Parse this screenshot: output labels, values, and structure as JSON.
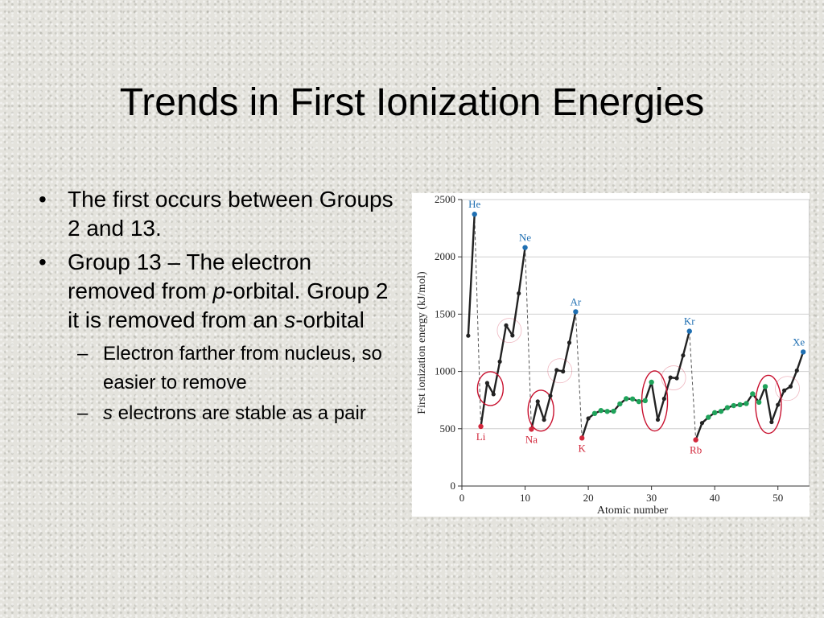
{
  "slide": {
    "title": "Trends in First Ionization Energies",
    "bullets": [
      {
        "parts": [
          {
            "text": "The first occurs between Groups 2 and 13.",
            "italic": false
          }
        ]
      },
      {
        "parts": [
          {
            "text": "Group 13 – The electron removed from ",
            "italic": false
          },
          {
            "text": "p",
            "italic": true
          },
          {
            "text": "-orbital. Group 2 it is removed from an ",
            "italic": false
          },
          {
            "text": "s",
            "italic": true
          },
          {
            "text": "-orbital",
            "italic": false
          }
        ],
        "sub": [
          {
            "parts": [
              {
                "text": "Electron farther from nucleus, so easier to remove",
                "italic": false
              }
            ]
          },
          {
            "parts": [
              {
                "text": "s",
                "italic": true
              },
              {
                "text": " electrons are stable as a pair",
                "italic": false
              }
            ]
          }
        ]
      }
    ]
  },
  "chart_data": {
    "type": "line",
    "xlabel": "Atomic number",
    "ylabel": "First ionization energy (kJ/mol)",
    "xlim": [
      0,
      55
    ],
    "ylim": [
      0,
      2500
    ],
    "xticks": [
      0,
      10,
      20,
      30,
      40,
      50
    ],
    "yticks": [
      0,
      500,
      1000,
      1500,
      2000,
      2500
    ],
    "grid": "horizontal",
    "colors": {
      "line": "#222222",
      "normal_point": "#222222",
      "noble_gas": "#1f6fb2",
      "alkali_metal": "#d2283c",
      "transition_metal": "#1fa35a",
      "circle": "#c8102e"
    },
    "series": [
      {
        "x": [
          1,
          2,
          3,
          4,
          5,
          6,
          7,
          8,
          9,
          10,
          11,
          12,
          13,
          14,
          15,
          16,
          17,
          18,
          19,
          20,
          21,
          22,
          23,
          24,
          25,
          26,
          27,
          28,
          29,
          30,
          31,
          32,
          33,
          34,
          35,
          36,
          37,
          38,
          39,
          40,
          41,
          42,
          43,
          44,
          45,
          46,
          47,
          48,
          49,
          50,
          51,
          52,
          53,
          54
        ],
        "values": [
          1312,
          2372,
          520,
          899,
          801,
          1086,
          1402,
          1314,
          1681,
          2081,
          496,
          738,
          578,
          787,
          1012,
          1000,
          1251,
          1521,
          419,
          590,
          633,
          659,
          651,
          653,
          717,
          762,
          760,
          737,
          745,
          906,
          579,
          762,
          947,
          941,
          1140,
          1351,
          403,
          550,
          600,
          640,
          652,
          684,
          702,
          710,
          720,
          804,
          731,
          868,
          558,
          709,
          834,
          869,
          1008,
          1170
        ],
        "category": [
          "n",
          "g",
          "a",
          "n",
          "n",
          "n",
          "n",
          "n",
          "n",
          "g",
          "a",
          "n",
          "n",
          "n",
          "n",
          "n",
          "n",
          "g",
          "a",
          "n",
          "t",
          "t",
          "t",
          "t",
          "t",
          "t",
          "t",
          "t",
          "t",
          "t",
          "n",
          "n",
          "n",
          "n",
          "n",
          "g",
          "a",
          "n",
          "t",
          "t",
          "t",
          "t",
          "t",
          "t",
          "t",
          "t",
          "t",
          "t",
          "n",
          "n",
          "n",
          "n",
          "n",
          "g"
        ]
      }
    ],
    "noble_gas_drops": [
      [
        2,
        3
      ],
      [
        10,
        11
      ],
      [
        18,
        19
      ],
      [
        36,
        37
      ]
    ],
    "annotations": [
      {
        "text": "He",
        "x": 2,
        "class": "noble_gas"
      },
      {
        "text": "Ne",
        "x": 10,
        "class": "noble_gas"
      },
      {
        "text": "Ar",
        "x": 18,
        "class": "noble_gas"
      },
      {
        "text": "Kr",
        "x": 36,
        "class": "noble_gas"
      },
      {
        "text": "Xe",
        "x": 54,
        "class": "noble_gas"
      },
      {
        "text": "Li",
        "x": 3,
        "class": "alkali_metal"
      },
      {
        "text": "Na",
        "x": 11,
        "class": "alkali_metal"
      },
      {
        "text": "K",
        "x": 19,
        "class": "alkali_metal"
      },
      {
        "text": "Rb",
        "x": 37,
        "class": "alkali_metal"
      }
    ],
    "circled_regions": [
      {
        "x": [
          4,
          5
        ],
        "style": "solid"
      },
      {
        "x": [
          7,
          8
        ],
        "style": "faint"
      },
      {
        "x": [
          12,
          13
        ],
        "style": "solid"
      },
      {
        "x": [
          15,
          16
        ],
        "style": "faint"
      },
      {
        "x": [
          30,
          31
        ],
        "style": "solid"
      },
      {
        "x": [
          33,
          34
        ],
        "style": "faint"
      },
      {
        "x": [
          48,
          49
        ],
        "style": "solid"
      },
      {
        "x": [
          51,
          52
        ],
        "style": "faint"
      }
    ]
  }
}
